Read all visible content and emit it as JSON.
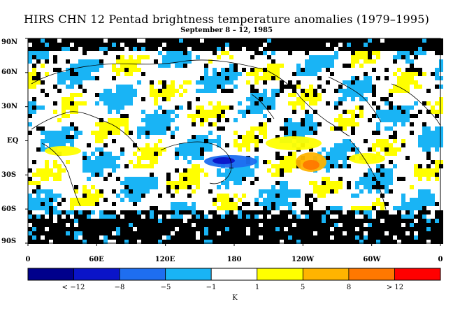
{
  "title": "HIRS CHN 12 Pentad brightness temperature anomalies (1979–1995)",
  "subtitle": "September 8 – 12, 1985",
  "lat_labels": [
    "90N",
    "60N",
    "30N",
    "EQ",
    "30S",
    "60S",
    "90S"
  ],
  "lon_labels": [
    "0",
    "60E",
    "120E",
    "180",
    "120W",
    "60W",
    "0"
  ],
  "colorbar": {
    "labels": [
      "< −12",
      "−8",
      "−5",
      "−1",
      "1",
      "5",
      "8",
      "> 12"
    ],
    "unit": "K",
    "colors": [
      "#00008c",
      "#0a14c8",
      "#1e6ef0",
      "#19b4f5",
      "#ffffff",
      "#ffff00",
      "#ffb400",
      "#ff7800",
      "#ff0000"
    ]
  },
  "colors": {
    "missing": "#000000",
    "neutral": "#ffffff",
    "cool": "#19b4f5",
    "warm": "#ffff00",
    "coast": "#000000"
  }
}
